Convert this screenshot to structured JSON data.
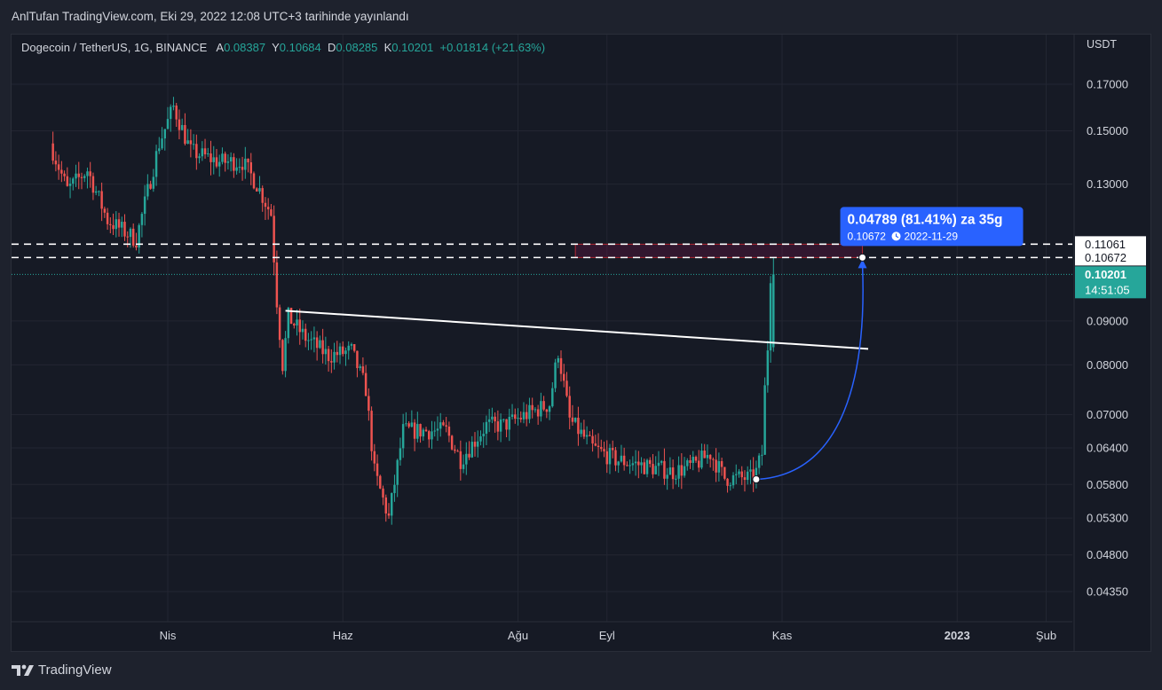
{
  "header": {
    "published": "AnlTufan TradingView.com, Eki 29, 2022 12:08 UTC+3 tarihinde yayınlandı"
  },
  "legend": {
    "symbol": "Dogecoin / TetherUS, 1G, BINANCE",
    "open_label": "A",
    "open": "0.08387",
    "high_label": "Y",
    "high": "0.10684",
    "low_label": "D",
    "low": "0.08285",
    "close_label": "K",
    "close": "0.10201",
    "change": "+0.01814 (+21.63%)"
  },
  "price_axis": {
    "unit": "USDT"
  },
  "footer": {
    "brand": "TradingView"
  },
  "colors": {
    "up": "#26a69a",
    "down": "#ef5350",
    "background": "#161a25",
    "grid": "#232632",
    "measure": "#2962ff",
    "current_price_bg": "#26a69a"
  },
  "chart_data": {
    "type": "candlestick",
    "scale": "log",
    "y_ticks": [
      0.17,
      0.15,
      0.13,
      0.09,
      0.08,
      0.07,
      0.064,
      0.058,
      0.053,
      0.048,
      0.0435
    ],
    "y_tick_labels": [
      "0.17000",
      "0.15000",
      "0.13000",
      "0.09000",
      "0.08000",
      "0.07000",
      "0.06400",
      "0.05800",
      "0.05300",
      "0.04800",
      "0.04350"
    ],
    "x_labels": [
      {
        "label": "Nis",
        "date": "2022-04-01"
      },
      {
        "label": "Haz",
        "date": "2022-06-01"
      },
      {
        "label": "Ağu",
        "date": "2022-08-01"
      },
      {
        "label": "Eyl",
        "date": "2022-09-01"
      },
      {
        "label": "Kas",
        "date": "2022-11-01"
      },
      {
        "label": "2023",
        "date": "2023-01-01",
        "bold": true
      },
      {
        "label": "Şub",
        "date": "2023-02-01"
      }
    ],
    "x_range": [
      "2022-02-20",
      "2023-02-20"
    ],
    "y_range": [
      0.04,
      0.195
    ],
    "price_anchors": [
      [
        "2022-02-20",
        0.145
      ],
      [
        "2022-02-26",
        0.128
      ],
      [
        "2022-03-05",
        0.135
      ],
      [
        "2022-03-12",
        0.118
      ],
      [
        "2022-03-22",
        0.112
      ],
      [
        "2022-03-30",
        0.145
      ],
      [
        "2022-04-04",
        0.16
      ],
      [
        "2022-04-10",
        0.142
      ],
      [
        "2022-04-20",
        0.138
      ],
      [
        "2022-04-28",
        0.138
      ],
      [
        "2022-05-03",
        0.13
      ],
      [
        "2022-05-08",
        0.12
      ],
      [
        "2022-05-10",
        0.095
      ],
      [
        "2022-05-12",
        0.08
      ],
      [
        "2022-05-14",
        0.091
      ],
      [
        "2022-05-20",
        0.086
      ],
      [
        "2022-05-28",
        0.082
      ],
      [
        "2022-06-05",
        0.083
      ],
      [
        "2022-06-10",
        0.075
      ],
      [
        "2022-06-13",
        0.06
      ],
      [
        "2022-06-18",
        0.053
      ],
      [
        "2022-06-23",
        0.067
      ],
      [
        "2022-07-01",
        0.067
      ],
      [
        "2022-07-08",
        0.067
      ],
      [
        "2022-07-13",
        0.062
      ],
      [
        "2022-07-22",
        0.068
      ],
      [
        "2022-07-28",
        0.068
      ],
      [
        "2022-08-05",
        0.07
      ],
      [
        "2022-08-13",
        0.072
      ],
      [
        "2022-08-16",
        0.083
      ],
      [
        "2022-08-20",
        0.069
      ],
      [
        "2022-08-28",
        0.064
      ],
      [
        "2022-09-05",
        0.062
      ],
      [
        "2022-09-15",
        0.061
      ],
      [
        "2022-09-25",
        0.06
      ],
      [
        "2022-10-02",
        0.061
      ],
      [
        "2022-10-08",
        0.063
      ],
      [
        "2022-10-13",
        0.059
      ],
      [
        "2022-10-22",
        0.059
      ],
      [
        "2022-10-24",
        0.06
      ],
      [
        "2022-10-26",
        0.063
      ],
      [
        "2022-10-27",
        0.075
      ],
      [
        "2022-10-28",
        0.084
      ],
      [
        "2022-10-29",
        0.102
      ]
    ],
    "ohlc_last": {
      "date": "2022-10-29",
      "open": 0.08387,
      "high": 0.10684,
      "low": 0.08285,
      "close": 0.10201
    },
    "trendline": {
      "from": {
        "date": "2022-05-12",
        "price": 0.0925
      },
      "to": {
        "date": "2022-12-01",
        "price": 0.0835
      }
    },
    "horizontal_levels": [
      {
        "price": 0.11061,
        "label": "0.11061",
        "style": "dashed"
      },
      {
        "price": 0.10672,
        "label": "0.10672",
        "style": "dashed"
      }
    ],
    "current_price": {
      "price": 0.10201,
      "label": "0.10201",
      "countdown": "14:51:05"
    },
    "zone": {
      "from": "2022-08-21",
      "to": "2022-11-29",
      "low": 0.10672,
      "high": 0.11061
    },
    "measure": {
      "from": {
        "date": "2022-10-23",
        "price": 0.0588
      },
      "to": {
        "date": "2022-11-29",
        "price": 0.10672
      },
      "title": "0.04789 (81.41%) za 35g",
      "target": "0.10672",
      "date": "2022-11-29"
    }
  }
}
